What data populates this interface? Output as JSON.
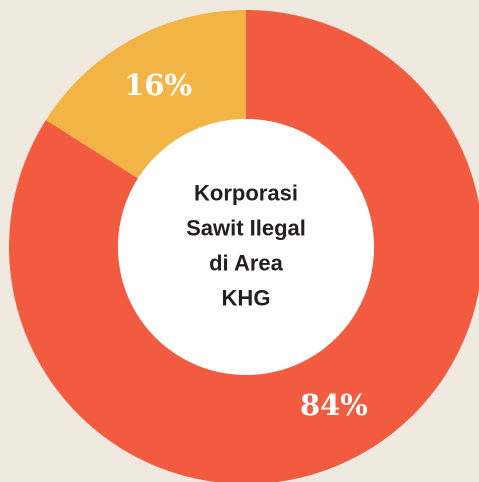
{
  "chart_data": {
    "type": "donut",
    "title": [
      "Korporasi",
      "Sawit Ilegal",
      "di Area",
      "KHG"
    ],
    "values": [
      84,
      16
    ],
    "value_labels": [
      "84%",
      "16%"
    ],
    "colors": [
      "#f25b3f",
      "#f2b545"
    ]
  }
}
